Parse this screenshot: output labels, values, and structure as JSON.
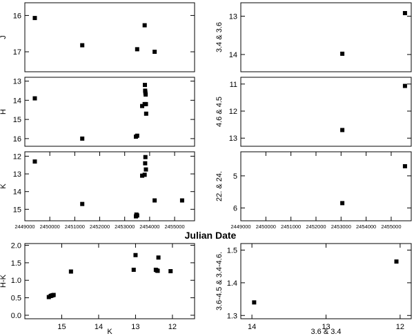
{
  "figure": {
    "xlabel_center": "Julian Date"
  },
  "chart_data": [
    {
      "id": "J",
      "type": "scatter",
      "ylabel": "J",
      "xlim": [
        2449000,
        2455800
      ],
      "ylim": [
        17.55,
        15.65
      ],
      "x_ticks": [],
      "y_ticks": [
        16,
        17
      ],
      "series": [
        {
          "x": [
            2449400,
            2451300,
            2453500,
            2453800,
            2454200
          ],
          "y": [
            16.07,
            16.82,
            16.93,
            16.27,
            17.0
          ]
        }
      ]
    },
    {
      "id": "H",
      "type": "scatter",
      "ylabel": "H",
      "xlim": [
        2449000,
        2455800
      ],
      "ylim": [
        16.4,
        12.8
      ],
      "x_ticks": [],
      "y_ticks": [
        13,
        14,
        15,
        16
      ],
      "series": [
        {
          "x": [
            2449400,
            2451300,
            2453450,
            2453500,
            2453700,
            2453800,
            2453810,
            2453820,
            2453830,
            2453840,
            2453850,
            2453860
          ],
          "y": [
            13.9,
            16.0,
            15.9,
            15.85,
            14.3,
            14.2,
            13.2,
            13.5,
            13.6,
            13.7,
            14.2,
            14.7
          ]
        }
      ]
    },
    {
      "id": "K",
      "type": "scatter",
      "ylabel": "K",
      "xlim": [
        2449000,
        2455800
      ],
      "ylim": [
        15.65,
        11.75
      ],
      "x_ticks": [
        2449000,
        2450000,
        2451000,
        2452000,
        2453000,
        2454000,
        2455000
      ],
      "x_tick_labels": [
        "2449000",
        "2450000",
        "2451000",
        "2452000",
        "2453000",
        "2454000",
        "2455000"
      ],
      "y_ticks": [
        12,
        13,
        14,
        15
      ],
      "series": [
        {
          "x": [
            2449400,
            2451300,
            2453450,
            2453470,
            2453500,
            2453700,
            2453800,
            2453820,
            2453830,
            2453850,
            2454200,
            2455300
          ],
          "y": [
            12.3,
            14.7,
            15.4,
            15.3,
            15.35,
            13.1,
            13.05,
            12.4,
            12.05,
            12.75,
            14.5,
            14.5
          ]
        }
      ]
    },
    {
      "id": "W12",
      "type": "scatter",
      "ylabel": "3.4 & 3.6",
      "xlim": [
        2449000,
        2455800
      ],
      "ylim": [
        14.45,
        12.65
      ],
      "x_ticks": [],
      "y_ticks": [
        13,
        14
      ],
      "series": [
        {
          "x": [
            2453050,
            2455550
          ],
          "y": [
            13.98,
            12.92
          ]
        }
      ]
    },
    {
      "id": "W34",
      "type": "scatter",
      "ylabel": "4.6 & 4.5",
      "xlim": [
        2449000,
        2455800
      ],
      "ylim": [
        13.3,
        10.75
      ],
      "x_ticks": [],
      "y_ticks": [
        11,
        12,
        13
      ],
      "series": [
        {
          "x": [
            2453050,
            2455550
          ],
          "y": [
            12.7,
            11.07
          ]
        }
      ]
    },
    {
      "id": "W56",
      "type": "scatter",
      "ylabel": "22. & 24.",
      "xlim": [
        2449000,
        2455800
      ],
      "ylim": [
        6.4,
        4.25
      ],
      "x_ticks": [
        2449000,
        2450000,
        2451000,
        2452000,
        2453000,
        2454000,
        2455000
      ],
      "x_tick_labels": [
        "2449000",
        "2450000",
        "2451000",
        "2452000",
        "2453000",
        "2454000",
        "2455000"
      ],
      "y_ticks": [
        5,
        6
      ],
      "series": [
        {
          "x": [
            2453050,
            2455550
          ],
          "y": [
            5.85,
            4.7
          ]
        }
      ]
    },
    {
      "id": "HK",
      "type": "scatter",
      "ylabel": "H-K",
      "xlabel": "K",
      "xlim": [
        16.0,
        11.4
      ],
      "ylim": [
        -0.1,
        2.05
      ],
      "x_ticks": [
        15,
        14,
        13,
        12
      ],
      "x_tick_labels": [
        "15",
        "14",
        "13",
        "12"
      ],
      "y_ticks": [
        0.0,
        0.5,
        1.0,
        1.5,
        2.0
      ],
      "y_tick_labels": [
        "0.0",
        "0.5",
        "1.0",
        "1.5",
        "2.0"
      ],
      "series": [
        {
          "x": [
            15.35,
            15.3,
            15.28,
            15.25,
            15.22,
            14.75,
            13.05,
            13.0,
            12.45,
            12.42,
            12.4,
            12.38,
            12.05
          ],
          "y": [
            0.52,
            0.55,
            0.56,
            0.57,
            0.58,
            1.25,
            1.3,
            1.72,
            1.3,
            1.28,
            1.27,
            1.65,
            1.26
          ]
        }
      ]
    },
    {
      "id": "WC",
      "type": "scatter",
      "ylabel": "3.6-4.5 & 3.4-4.6.",
      "xlabel": "3.6 & 3.4",
      "xlim": [
        14.15,
        11.85
      ],
      "ylim": [
        1.29,
        1.52
      ],
      "x_ticks": [
        14,
        13,
        12
      ],
      "x_tick_labels": [
        "14",
        "13",
        "12"
      ],
      "y_ticks": [
        1.3,
        1.4,
        1.5
      ],
      "y_tick_labels": [
        "1.3",
        "1.4",
        "1.5"
      ],
      "series": [
        {
          "x": [
            13.97,
            12.05
          ],
          "y": [
            1.34,
            1.465
          ]
        }
      ]
    }
  ]
}
